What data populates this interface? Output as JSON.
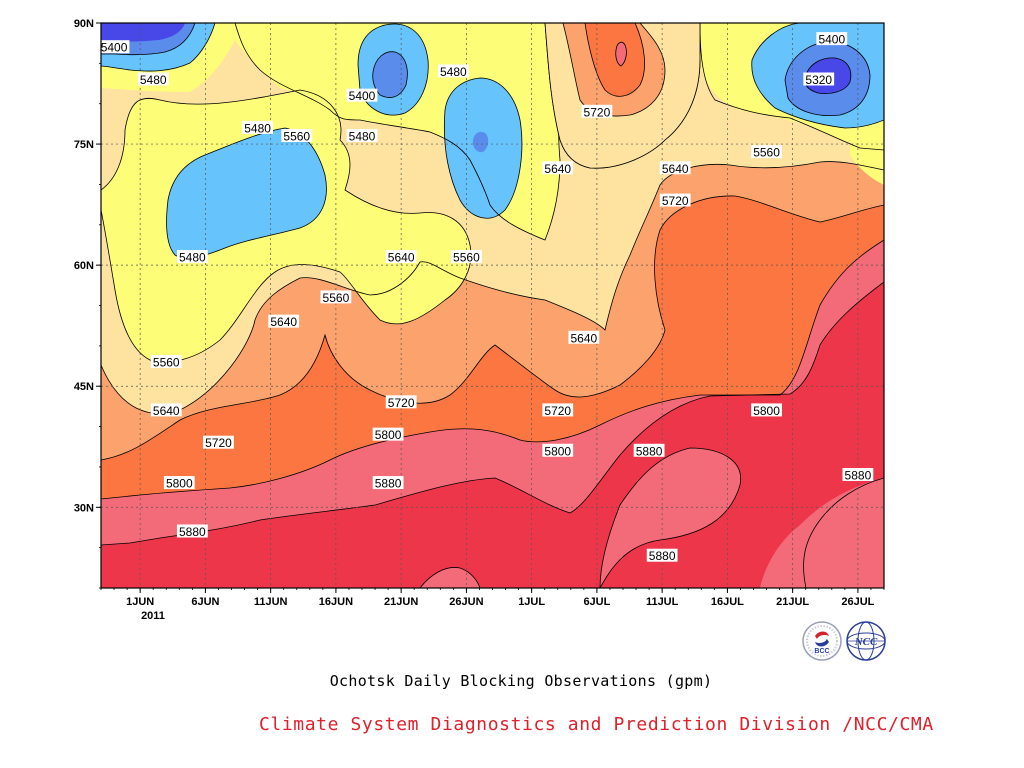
{
  "title": "Ochotsk Daily Blocking Observations (gpm)",
  "credit": "Climate System Diagnostics and Prediction Division /NCC/CMA",
  "logos": [
    {
      "name": "bcc-logo",
      "text": "BCC",
      "color": "#2a3d9a",
      "accent": "#d4232a"
    },
    {
      "name": "ncc-logo",
      "text": "NCC",
      "color": "#2a3d9a"
    }
  ],
  "chart_data": {
    "type": "heatmap",
    "subtype": "filled-contour",
    "title": "Ochotsk Daily Blocking Observations (gpm)",
    "x_axis": {
      "range": [
        "2011-05-29",
        "2011-07-28"
      ],
      "ticks": [
        "1JUN",
        "6JUN",
        "11JUN",
        "16JUN",
        "21JUN",
        "26JUN",
        "1JUL",
        "6JUL",
        "11JUL",
        "16JUL",
        "21JUL",
        "26JUL"
      ],
      "year_label": "2011"
    },
    "y_axis": {
      "range": [
        20,
        90
      ],
      "ticks": [
        "30N",
        "45N",
        "60N",
        "75N",
        "90N"
      ]
    },
    "grid": true,
    "contour_levels": [
      5320,
      5400,
      5480,
      5560,
      5640,
      5720,
      5800,
      5880
    ],
    "fill_colors": {
      "below_5320": "#4848e8",
      "5320_5400": "#5a8cec",
      "5400_5480": "#66c3fc",
      "5480_5560": "#fdfd78",
      "5560_5640": "#fde2a0",
      "5640_5720": "#fca26c",
      "5720_5800": "#fc7642",
      "5800_5880": "#f36a78",
      "above_5880": "#ee364a"
    },
    "contour_labels": [
      {
        "text": "5400",
        "date": "2011-05-30",
        "lat": 87
      },
      {
        "text": "5480",
        "date": "2011-06-02",
        "lat": 83
      },
      {
        "text": "5480",
        "date": "2011-06-10",
        "lat": 77
      },
      {
        "text": "5560",
        "date": "2011-06-13",
        "lat": 76
      },
      {
        "text": "5400",
        "date": "2011-06-18",
        "lat": 81
      },
      {
        "text": "5480",
        "date": "2011-06-18",
        "lat": 76
      },
      {
        "text": "5480",
        "date": "2011-06-25",
        "lat": 84
      },
      {
        "text": "5720",
        "date": "2011-07-06",
        "lat": 79
      },
      {
        "text": "5640",
        "date": "2011-07-03",
        "lat": 72
      },
      {
        "text": "5400",
        "date": "2011-07-24",
        "lat": 88
      },
      {
        "text": "5320",
        "date": "2011-07-23",
        "lat": 83
      },
      {
        "text": "5560",
        "date": "2011-07-19",
        "lat": 74
      },
      {
        "text": "5640",
        "date": "2011-07-12",
        "lat": 72
      },
      {
        "text": "5720",
        "date": "2011-07-12",
        "lat": 68
      },
      {
        "text": "5480",
        "date": "2011-06-05",
        "lat": 61
      },
      {
        "text": "5640",
        "date": "2011-06-21",
        "lat": 61
      },
      {
        "text": "5560",
        "date": "2011-06-26",
        "lat": 61
      },
      {
        "text": "5560",
        "date": "2011-06-16",
        "lat": 56
      },
      {
        "text": "5640",
        "date": "2011-06-12",
        "lat": 53
      },
      {
        "text": "5560",
        "date": "2011-06-03",
        "lat": 48
      },
      {
        "text": "5640",
        "date": "2011-07-05",
        "lat": 51
      },
      {
        "text": "5640",
        "date": "2011-06-03",
        "lat": 42
      },
      {
        "text": "5720",
        "date": "2011-06-21",
        "lat": 43
      },
      {
        "text": "5720",
        "date": "2011-07-03",
        "lat": 42
      },
      {
        "text": "5720",
        "date": "2011-06-07",
        "lat": 38
      },
      {
        "text": "5800",
        "date": "2011-06-20",
        "lat": 39
      },
      {
        "text": "5800",
        "date": "2011-07-03",
        "lat": 37
      },
      {
        "text": "5880",
        "date": "2011-07-10",
        "lat": 37
      },
      {
        "text": "5800",
        "date": "2011-07-19",
        "lat": 42
      },
      {
        "text": "5880",
        "date": "2011-07-26",
        "lat": 34
      },
      {
        "text": "5800",
        "date": "2011-06-04",
        "lat": 33
      },
      {
        "text": "5880",
        "date": "2011-06-20",
        "lat": 33
      },
      {
        "text": "5880",
        "date": "2011-06-05",
        "lat": 27
      },
      {
        "text": "5880",
        "date": "2011-07-11",
        "lat": 24
      }
    ]
  }
}
